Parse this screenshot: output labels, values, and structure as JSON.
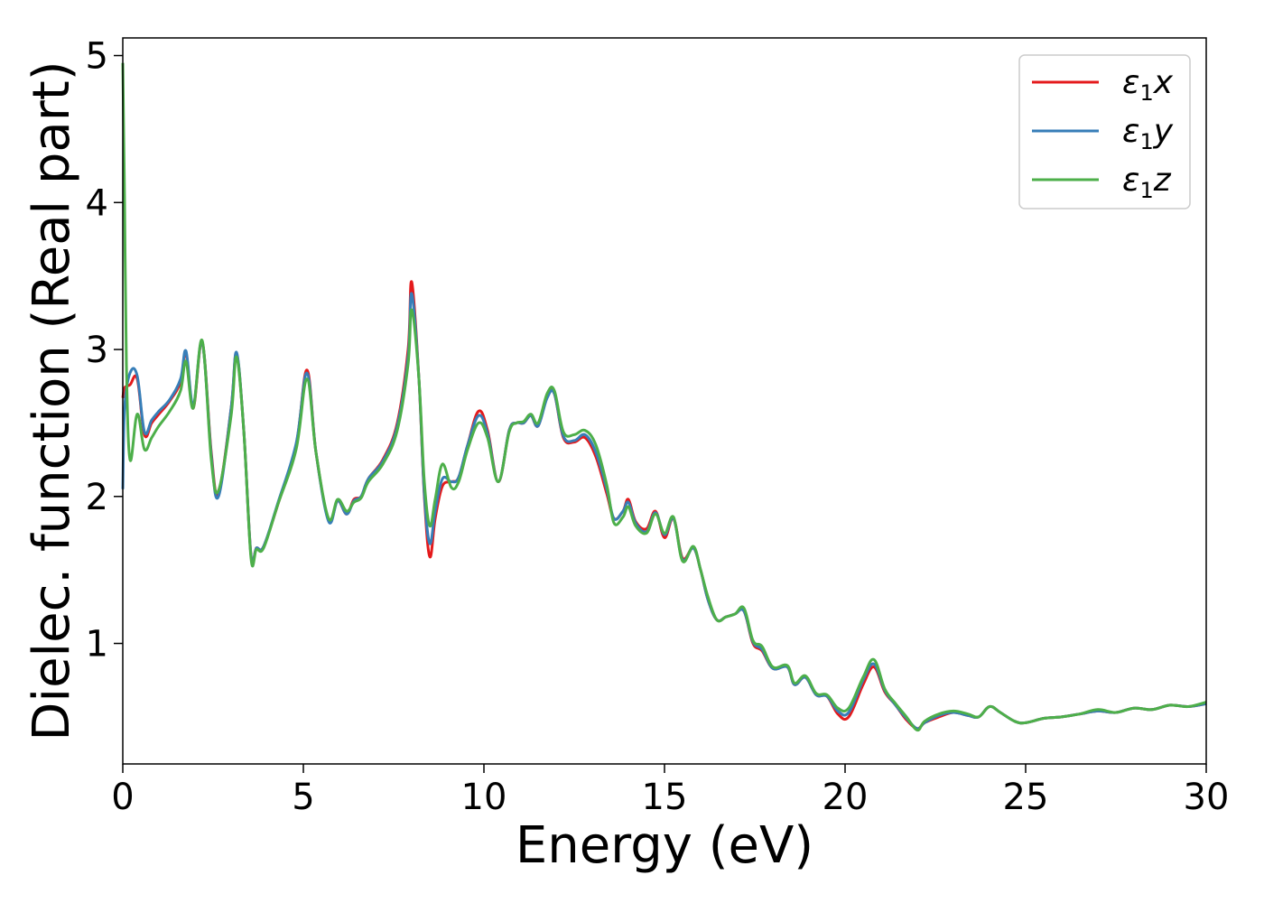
{
  "chart_data": {
    "type": "line",
    "xlabel": "Energy (eV)",
    "ylabel": "Dielec. function (Real part)",
    "xlim": [
      0,
      30
    ],
    "ylim": [
      0.18,
      5.12
    ],
    "xticks": [
      0,
      5,
      10,
      15,
      20,
      25,
      30
    ],
    "yticks": [
      1,
      2,
      3,
      4,
      5
    ],
    "grid": false,
    "legend_position": "top-right",
    "series": [
      {
        "name": "ε₁x",
        "color": "#e41a1c",
        "x": [
          0,
          0.05,
          0.2,
          0.4,
          0.6,
          0.8,
          1.0,
          1.3,
          1.6,
          1.75,
          1.95,
          2.2,
          2.45,
          2.65,
          3.0,
          3.15,
          3.35,
          3.55,
          3.7,
          3.9,
          4.3,
          4.8,
          5.1,
          5.35,
          5.7,
          5.95,
          6.2,
          6.4,
          6.6,
          6.8,
          7.2,
          7.6,
          7.9,
          8.0,
          8.2,
          8.35,
          8.5,
          8.65,
          8.85,
          9.1,
          9.3,
          9.55,
          9.85,
          10.1,
          10.4,
          10.7,
          10.9,
          11.1,
          11.3,
          11.5,
          11.75,
          11.95,
          12.2,
          12.5,
          12.8,
          13.1,
          13.4,
          13.6,
          13.85,
          14.0,
          14.2,
          14.5,
          14.75,
          15.0,
          15.25,
          15.5,
          15.8,
          16.0,
          16.2,
          16.45,
          16.7,
          16.95,
          17.2,
          17.45,
          17.7,
          18.0,
          18.4,
          18.6,
          18.9,
          19.2,
          19.5,
          19.8,
          20.1,
          20.5,
          20.8,
          21.1,
          21.4,
          21.7,
          22.0,
          22.2,
          22.6,
          23.0,
          23.4,
          23.7,
          24.0,
          24.3,
          24.7,
          25.0,
          25.5,
          26.0,
          26.5,
          27.0,
          27.5,
          28.0,
          28.5,
          29.0,
          29.5,
          30.0
        ],
        "y": [
          2.67,
          2.74,
          2.76,
          2.8,
          2.42,
          2.5,
          2.56,
          2.65,
          2.78,
          2.98,
          2.6,
          3.05,
          2.3,
          2.02,
          2.6,
          2.97,
          2.45,
          1.6,
          1.65,
          1.66,
          1.95,
          2.35,
          2.86,
          2.3,
          1.84,
          1.97,
          1.88,
          1.98,
          2.0,
          2.12,
          2.25,
          2.5,
          3.0,
          3.46,
          2.8,
          2.0,
          1.59,
          1.85,
          2.07,
          2.1,
          2.13,
          2.35,
          2.58,
          2.45,
          2.1,
          2.45,
          2.5,
          2.5,
          2.55,
          2.48,
          2.68,
          2.7,
          2.4,
          2.37,
          2.4,
          2.27,
          2.02,
          1.85,
          1.9,
          1.98,
          1.83,
          1.78,
          1.9,
          1.72,
          1.85,
          1.58,
          1.65,
          1.5,
          1.3,
          1.16,
          1.18,
          1.2,
          1.22,
          1.0,
          0.95,
          0.83,
          0.84,
          0.72,
          0.77,
          0.65,
          0.64,
          0.52,
          0.5,
          0.72,
          0.84,
          0.67,
          0.58,
          0.48,
          0.42,
          0.46,
          0.5,
          0.53,
          0.51,
          0.5,
          0.57,
          0.53,
          0.47,
          0.46,
          0.49,
          0.5,
          0.52,
          0.54,
          0.53,
          0.56,
          0.55,
          0.58,
          0.57,
          0.59
        ]
      },
      {
        "name": "ε₁y",
        "color": "#377eb8",
        "x": [
          0,
          0.05,
          0.2,
          0.4,
          0.6,
          0.8,
          1.0,
          1.3,
          1.6,
          1.75,
          1.95,
          2.2,
          2.45,
          2.65,
          3.0,
          3.15,
          3.35,
          3.55,
          3.7,
          3.9,
          4.3,
          4.8,
          5.1,
          5.35,
          5.7,
          5.95,
          6.2,
          6.4,
          6.6,
          6.8,
          7.2,
          7.6,
          7.9,
          8.0,
          8.2,
          8.35,
          8.5,
          8.65,
          8.85,
          9.1,
          9.3,
          9.55,
          9.85,
          10.1,
          10.4,
          10.7,
          10.9,
          11.1,
          11.3,
          11.5,
          11.75,
          11.95,
          12.2,
          12.5,
          12.8,
          13.1,
          13.4,
          13.6,
          13.85,
          14.0,
          14.2,
          14.5,
          14.75,
          15.0,
          15.25,
          15.5,
          15.8,
          16.0,
          16.2,
          16.45,
          16.7,
          16.95,
          17.2,
          17.45,
          17.7,
          18.0,
          18.4,
          18.6,
          18.9,
          19.2,
          19.5,
          19.8,
          20.1,
          20.5,
          20.8,
          21.1,
          21.4,
          21.7,
          22.0,
          22.2,
          22.6,
          23.0,
          23.4,
          23.7,
          24.0,
          24.3,
          24.7,
          25.0,
          25.5,
          26.0,
          26.5,
          27.0,
          27.5,
          28.0,
          28.5,
          29.0,
          29.5,
          30.0
        ],
        "y": [
          2.05,
          2.6,
          2.84,
          2.82,
          2.44,
          2.52,
          2.58,
          2.66,
          2.8,
          2.99,
          2.62,
          3.05,
          2.28,
          2.0,
          2.6,
          2.98,
          2.45,
          1.6,
          1.65,
          1.66,
          1.96,
          2.36,
          2.84,
          2.3,
          1.83,
          1.97,
          1.88,
          1.97,
          2.0,
          2.12,
          2.24,
          2.48,
          2.95,
          3.38,
          2.8,
          2.02,
          1.68,
          1.9,
          2.12,
          2.1,
          2.13,
          2.35,
          2.55,
          2.43,
          2.1,
          2.45,
          2.5,
          2.5,
          2.55,
          2.48,
          2.67,
          2.7,
          2.41,
          2.38,
          2.42,
          2.3,
          2.05,
          1.85,
          1.9,
          1.96,
          1.82,
          1.76,
          1.89,
          1.74,
          1.85,
          1.57,
          1.65,
          1.5,
          1.3,
          1.16,
          1.18,
          1.2,
          1.22,
          1.01,
          0.96,
          0.83,
          0.84,
          0.72,
          0.77,
          0.65,
          0.64,
          0.54,
          0.53,
          0.75,
          0.86,
          0.68,
          0.58,
          0.49,
          0.42,
          0.46,
          0.51,
          0.53,
          0.51,
          0.5,
          0.57,
          0.53,
          0.47,
          0.46,
          0.49,
          0.5,
          0.52,
          0.54,
          0.53,
          0.56,
          0.55,
          0.58,
          0.57,
          0.59
        ]
      },
      {
        "name": "ε₁z",
        "color": "#4daf4a",
        "x": [
          0,
          0.05,
          0.1,
          0.2,
          0.4,
          0.6,
          0.8,
          1.0,
          1.3,
          1.6,
          1.75,
          1.95,
          2.2,
          2.45,
          2.65,
          3.0,
          3.15,
          3.35,
          3.55,
          3.7,
          3.9,
          4.3,
          4.8,
          5.1,
          5.35,
          5.7,
          5.95,
          6.2,
          6.4,
          6.6,
          6.8,
          7.2,
          7.6,
          7.9,
          8.0,
          8.2,
          8.35,
          8.5,
          8.65,
          8.85,
          9.1,
          9.3,
          9.55,
          9.85,
          10.1,
          10.4,
          10.7,
          10.9,
          11.1,
          11.3,
          11.5,
          11.75,
          11.95,
          12.2,
          12.5,
          12.8,
          13.1,
          13.4,
          13.6,
          13.85,
          14.0,
          14.2,
          14.5,
          14.75,
          15.0,
          15.25,
          15.5,
          15.8,
          16.0,
          16.2,
          16.45,
          16.7,
          16.95,
          17.2,
          17.45,
          17.7,
          18.0,
          18.4,
          18.6,
          18.9,
          19.2,
          19.5,
          19.8,
          20.1,
          20.5,
          20.8,
          21.1,
          21.4,
          21.7,
          22.0,
          22.2,
          22.6,
          23.0,
          23.4,
          23.7,
          24.0,
          24.3,
          24.7,
          25.0,
          25.5,
          26.0,
          26.5,
          27.0,
          27.5,
          28.0,
          28.5,
          29.0,
          29.5,
          30.0
        ],
        "y": [
          4.95,
          4.0,
          2.9,
          2.25,
          2.56,
          2.32,
          2.4,
          2.48,
          2.58,
          2.72,
          2.92,
          2.6,
          3.06,
          2.25,
          2.04,
          2.55,
          2.95,
          2.45,
          1.58,
          1.64,
          1.65,
          1.95,
          2.32,
          2.8,
          2.3,
          1.85,
          1.98,
          1.9,
          1.96,
          1.99,
          2.1,
          2.22,
          2.45,
          2.9,
          3.27,
          2.8,
          2.1,
          1.8,
          1.98,
          2.22,
          2.06,
          2.1,
          2.32,
          2.5,
          2.4,
          2.1,
          2.44,
          2.5,
          2.51,
          2.56,
          2.5,
          2.7,
          2.72,
          2.44,
          2.42,
          2.45,
          2.35,
          2.08,
          1.82,
          1.86,
          1.93,
          1.8,
          1.75,
          1.88,
          1.75,
          1.86,
          1.56,
          1.66,
          1.5,
          1.32,
          1.16,
          1.18,
          1.2,
          1.24,
          1.02,
          0.98,
          0.84,
          0.85,
          0.73,
          0.78,
          0.66,
          0.65,
          0.56,
          0.56,
          0.77,
          0.89,
          0.69,
          0.59,
          0.5,
          0.41,
          0.47,
          0.52,
          0.54,
          0.52,
          0.5,
          0.57,
          0.53,
          0.47,
          0.46,
          0.49,
          0.5,
          0.52,
          0.55,
          0.53,
          0.56,
          0.55,
          0.58,
          0.57,
          0.6
        ]
      }
    ],
    "legend": [
      {
        "base": "ε",
        "sub": "1",
        "var": "x"
      },
      {
        "base": "ε",
        "sub": "1",
        "var": "y"
      },
      {
        "base": "ε",
        "sub": "1",
        "var": "z"
      }
    ]
  }
}
